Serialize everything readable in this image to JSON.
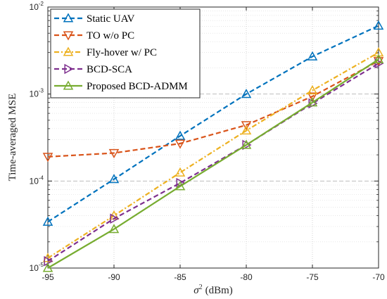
{
  "chart_data": {
    "type": "line",
    "xlabel_symbol": "σ",
    "xlabel_sup": "2",
    "xlabel_unit": "(dBm)",
    "ylabel": "Time-averaged MSE",
    "x": [
      -95,
      -90,
      -85,
      -80,
      -75,
      -70
    ],
    "x_tick_labels": [
      "-95",
      "-90",
      "-85",
      "-80",
      "-75",
      "-70"
    ],
    "xlim": [
      -95,
      -70
    ],
    "ylim": [
      1e-05,
      0.01
    ],
    "yscale": "log",
    "y_tick_labels": [
      {
        "base": "10",
        "exp": "-5",
        "value": 1e-05
      },
      {
        "base": "10",
        "exp": "-4",
        "value": 0.0001
      },
      {
        "base": "10",
        "exp": "-3",
        "value": 0.001
      },
      {
        "base": "10",
        "exp": "-2",
        "value": 0.01
      }
    ],
    "grid": true,
    "legend_position": "top-left",
    "series": [
      {
        "name": "Static UAV",
        "color": "#0072BD",
        "dash": "dashed",
        "marker": "triangle-up",
        "values": [
          3.4e-05,
          0.000105,
          0.00033,
          0.001,
          0.0027,
          0.0061
        ]
      },
      {
        "name": "TO w/o PC",
        "color": "#D95319",
        "dash": "dashed",
        "marker": "triangle-down",
        "values": [
          0.00019,
          0.00021,
          0.00027,
          0.00044,
          0.00094,
          0.0024
        ]
      },
      {
        "name": "Fly-hover w/ PC",
        "color": "#EDB120",
        "dash": "dashdot",
        "marker": "triangle-up",
        "values": [
          1.3e-05,
          4e-05,
          0.000125,
          0.00038,
          0.0011,
          0.003
        ]
      },
      {
        "name": "BCD-SCA",
        "color": "#7E2F8E",
        "dash": "dashed",
        "marker": "triangle-right",
        "values": [
          1.2e-05,
          3.7e-05,
          9.5e-05,
          0.00026,
          0.00078,
          0.00225
        ]
      },
      {
        "name": "Proposed BCD-ADMM",
        "color": "#77AC30",
        "dash": "solid",
        "marker": "triangle-up",
        "values": [
          1e-05,
          2.8e-05,
          8.7e-05,
          0.00026,
          0.0008,
          0.0025
        ]
      }
    ]
  }
}
